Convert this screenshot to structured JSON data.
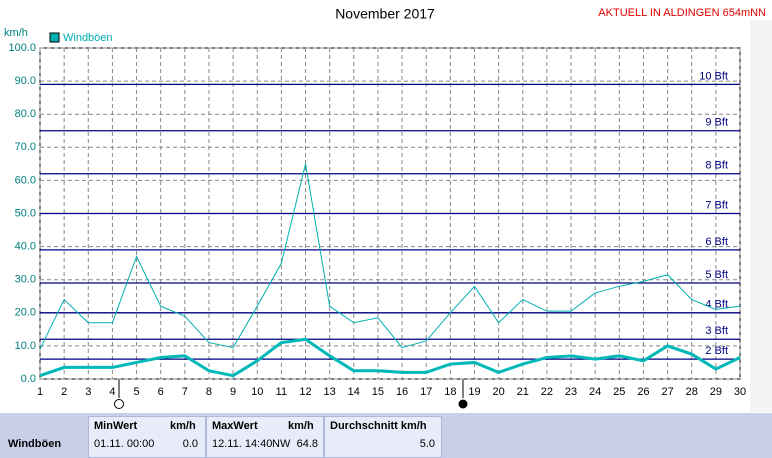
{
  "chart_data": {
    "type": "line",
    "title": "November 2017",
    "header_note": "AKTUELL IN ALDINGEN 654mNN",
    "y_label": "km/h",
    "x": [
      1,
      2,
      3,
      4,
      5,
      6,
      7,
      8,
      9,
      10,
      11,
      12,
      13,
      14,
      15,
      16,
      17,
      18,
      19,
      20,
      21,
      22,
      23,
      24,
      25,
      26,
      27,
      28,
      29,
      30
    ],
    "xlim": [
      1,
      30
    ],
    "xticks": [
      1,
      2,
      3,
      4,
      5,
      6,
      7,
      8,
      9,
      10,
      11,
      12,
      13,
      14,
      15,
      16,
      17,
      18,
      19,
      20,
      21,
      22,
      23,
      24,
      25,
      26,
      27,
      28,
      29,
      30
    ],
    "ylim": [
      0,
      100
    ],
    "yticks": [
      {
        "value": 0,
        "label": "0.0"
      },
      {
        "value": 10,
        "label": "10.0"
      },
      {
        "value": 20,
        "label": "20.0"
      },
      {
        "value": 30,
        "label": "30.0"
      },
      {
        "value": 40,
        "label": "40.0"
      },
      {
        "value": 50,
        "label": "50.0"
      },
      {
        "value": 60,
        "label": "60.0"
      },
      {
        "value": 70,
        "label": "70.0"
      },
      {
        "value": 80,
        "label": "80.0"
      },
      {
        "value": 90,
        "label": "90.0"
      },
      {
        "value": 100,
        "label": "100.0"
      }
    ],
    "grid": true,
    "legend": "top-left",
    "series": [
      {
        "name": "Windböen",
        "color": "#00b0b0",
        "width": 1,
        "values": [
          9,
          24,
          17,
          17,
          37,
          22,
          19,
          11,
          9.5,
          22,
          35,
          65,
          22,
          17,
          18.5,
          9.5,
          11.5,
          20,
          28,
          17,
          24,
          20.5,
          20.5,
          26,
          28,
          29.5,
          31.5,
          24,
          21,
          22
        ]
      },
      {
        "color": "#00b8b8",
        "width": 3,
        "values": [
          1,
          3.5,
          3.5,
          3.5,
          5,
          6.5,
          7,
          2.5,
          1,
          5.5,
          11,
          12,
          7,
          2.5,
          2.5,
          2,
          2,
          4.5,
          5,
          2,
          4.5,
          6.5,
          7,
          6,
          7,
          5.5,
          10,
          7.5,
          3,
          6.5
        ]
      }
    ],
    "reference_color": "#000080",
    "reference_lines": [
      {
        "value": 6,
        "label": "2 Bft"
      },
      {
        "value": 12,
        "label": "3 Bft"
      },
      {
        "value": 20,
        "label": "4 Bft"
      },
      {
        "value": 29,
        "label": "5 Bft"
      },
      {
        "value": 39,
        "label": "6 Bft"
      },
      {
        "value": 50,
        "label": "7 Bft"
      },
      {
        "value": 62,
        "label": "8 Bft"
      },
      {
        "value": 75,
        "label": "9 Bft"
      },
      {
        "value": 89,
        "label": "10 Bft"
      }
    ]
  },
  "table": {
    "headers": [
      "MinWert",
      "km/h",
      "MaxWert",
      "km/h",
      "Durchschnitt km/h"
    ],
    "row": [
      "Windböen",
      "01.11. 00:00",
      "0.0",
      "12.11. 14:40",
      "NW",
      "64.8",
      "5.0"
    ]
  }
}
